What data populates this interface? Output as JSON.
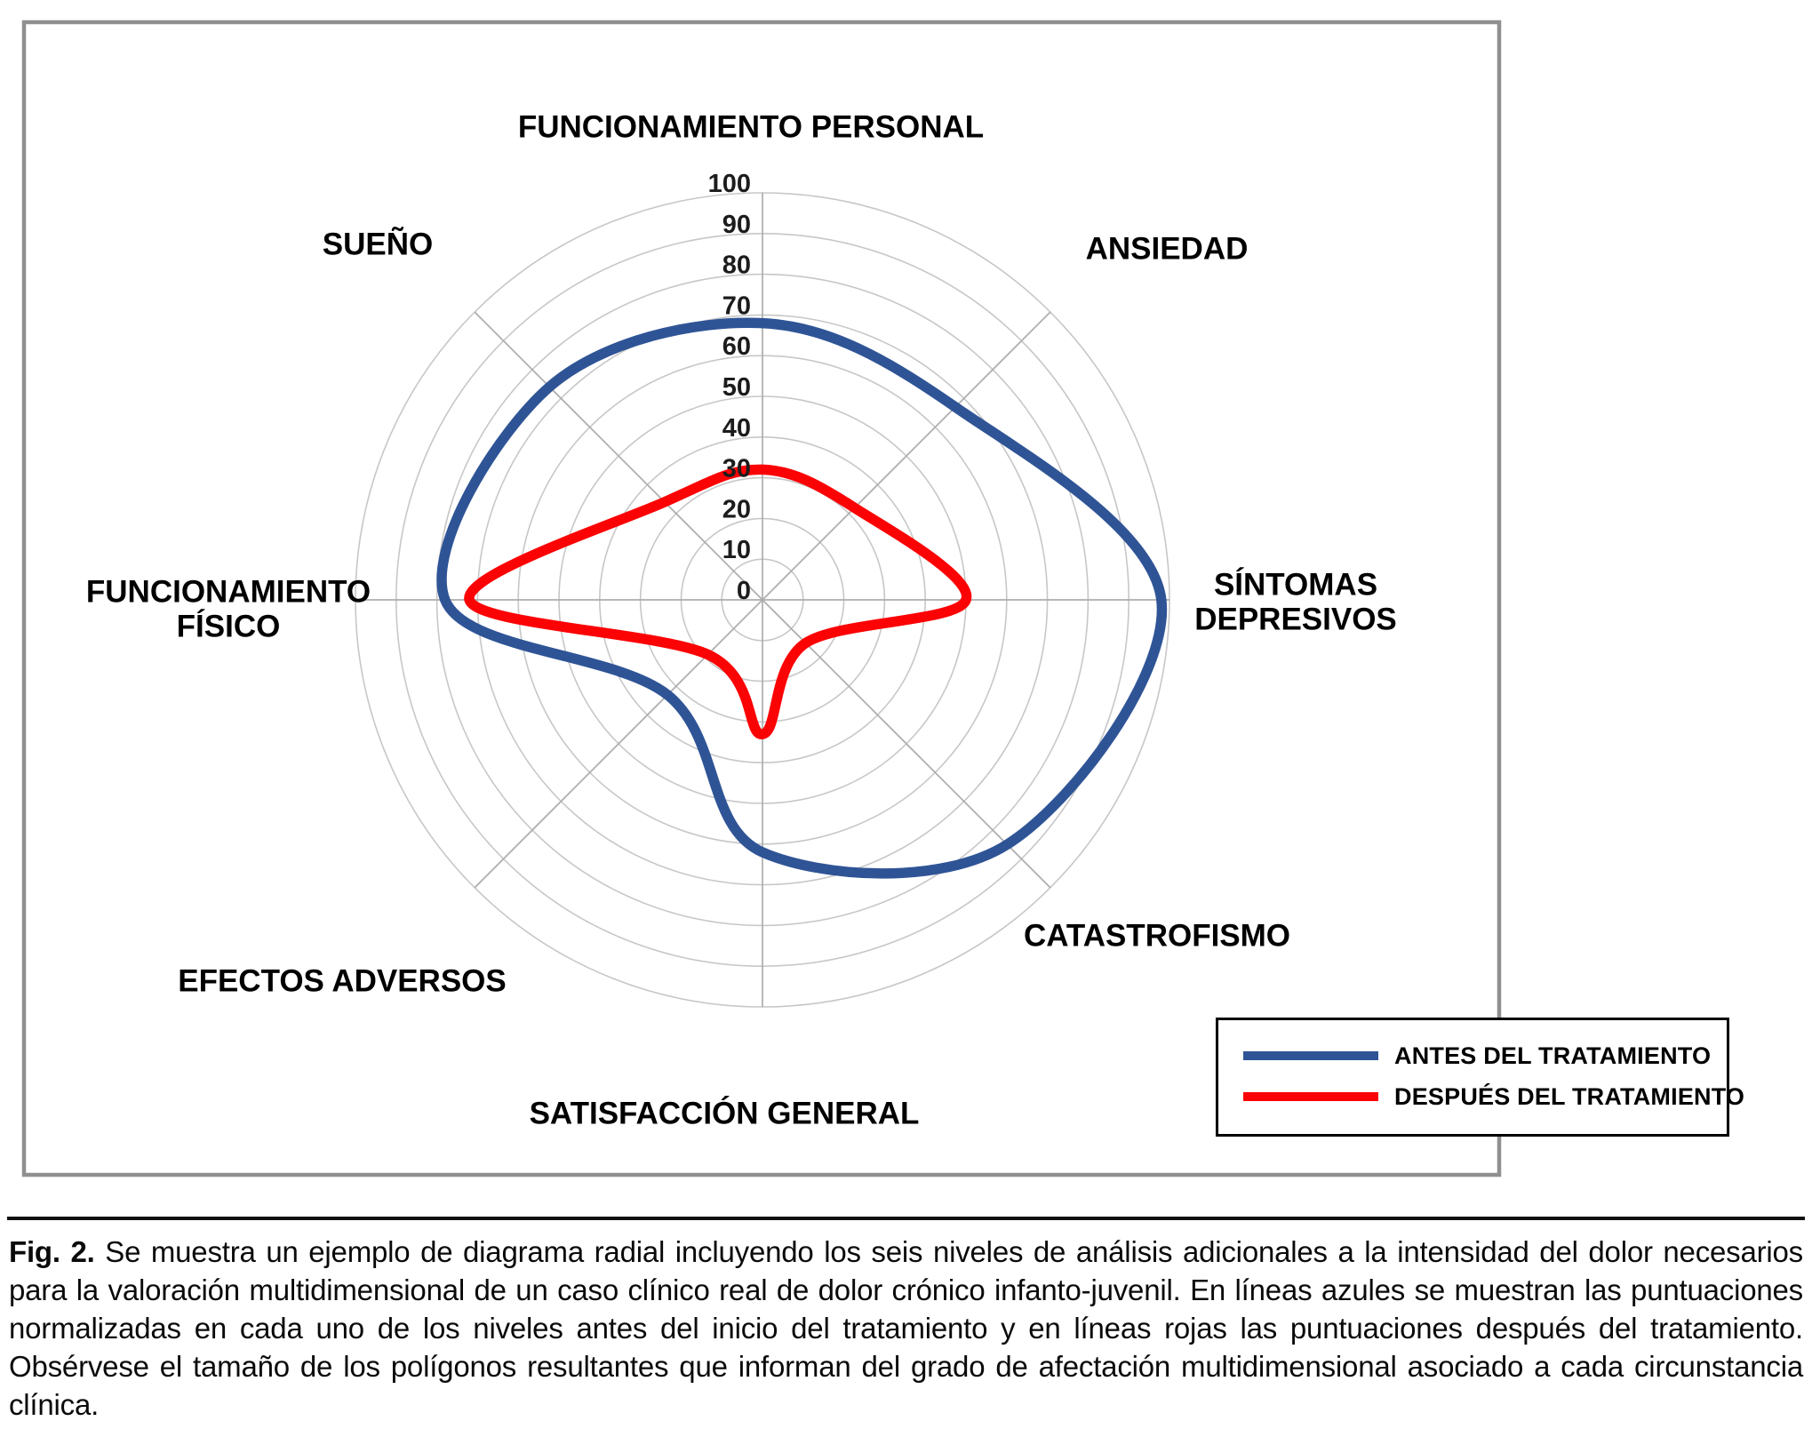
{
  "figure": {
    "caption_label": "Fig. 2.",
    "caption_text": "Se muestra un ejemplo de diagrama radial incluyendo los seis niveles de análisis adicionales a la intensidad del dolor necesarios para la valoración multidimensional de un caso clínico real de dolor crónico infanto-juvenil. En líneas azules se muestran las puntuaciones normalizadas en cada uno de los niveles antes del inicio del tratamiento y en líneas rojas las puntuaciones después del tratamiento. Obsérvese el tamaño de los polígonos resultantes que informan del grado de afectación multidimensional asociado a cada circunstancia clínica."
  },
  "chart_data": {
    "type": "radar",
    "title": "",
    "categories": [
      "FUNCIONAMIENTO PERSONAL",
      "ANSIEDAD",
      "SÍNTOMAS DEPRESIVOS",
      "CATASTROFISMO",
      "SATISFACCIÓN GENERAL",
      "EFECTOS ADVERSOS",
      "FUNCIONAMIENTO FÍSICO",
      "SUEÑO"
    ],
    "axis": {
      "min": 0,
      "max": 100,
      "step": 10,
      "tick_labels": [
        "0",
        "10",
        "20",
        "30",
        "40",
        "50",
        "60",
        "70",
        "80",
        "90",
        "100"
      ]
    },
    "series": [
      {
        "name": "ANTES DEL TRATAMIENTO",
        "color": "#2F5496",
        "values": [
          68,
          67,
          98,
          85,
          62,
          33,
          78,
          74
        ]
      },
      {
        "name": "DESPUÉS DEL TRATAMIENTO",
        "color": "#FB0204",
        "values": [
          32,
          32,
          50,
          15,
          33,
          19,
          72,
          34
        ]
      }
    ],
    "legend_position": "bottom-right",
    "grid": {
      "shape": "circular",
      "rings": 10,
      "spokes": 8,
      "smoothed_lines": true
    }
  },
  "colors": {
    "grid_ring": "#C7C7C7",
    "grid_spoke": "#ADADAD",
    "frame": "#8F8F8F",
    "tick_text": "#1C1C1C",
    "label_text": "#000000"
  }
}
